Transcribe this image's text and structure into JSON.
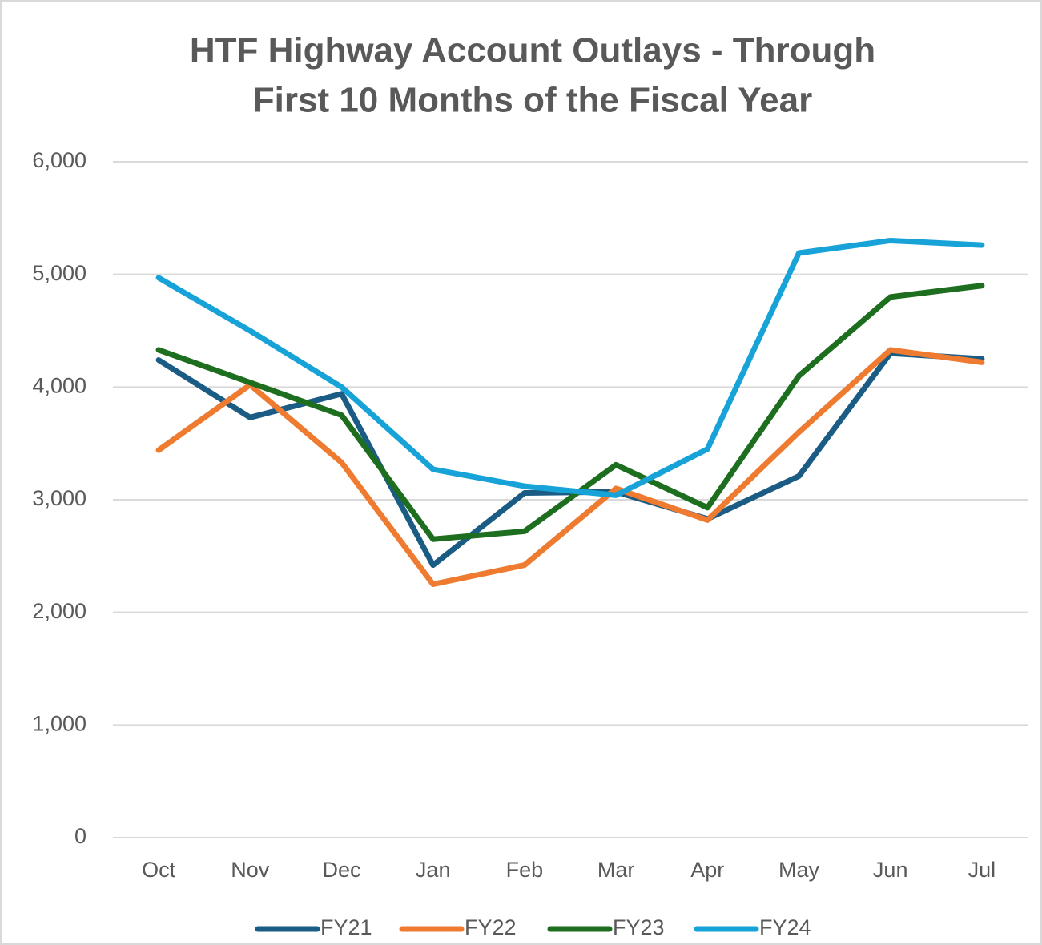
{
  "chart_data": {
    "type": "line",
    "title": [
      "HTF Highway Account Outlays - Through",
      "First 10 Months of the Fiscal Year"
    ],
    "categories": [
      "Oct",
      "Nov",
      "Dec",
      "Jan",
      "Feb",
      "Mar",
      "Apr",
      "May",
      "Jun",
      "Jul"
    ],
    "series": [
      {
        "name": "FY21",
        "color": "#1b5c85",
        "values": [
          4240,
          3730,
          3940,
          2420,
          3060,
          3070,
          2830,
          3210,
          4300,
          4250
        ]
      },
      {
        "name": "FY22",
        "color": "#ee7b30",
        "values": [
          3440,
          4020,
          3330,
          2250,
          2420,
          3100,
          2820,
          3600,
          4330,
          4220
        ]
      },
      {
        "name": "FY23",
        "color": "#1d6e1f",
        "values": [
          4330,
          4040,
          3750,
          2650,
          2720,
          3310,
          2930,
          4100,
          4800,
          4900
        ]
      },
      {
        "name": "FY24",
        "color": "#18a3d8",
        "values": [
          4970,
          4500,
          4000,
          3270,
          3120,
          3040,
          3450,
          5190,
          5300,
          5260
        ]
      }
    ],
    "ylim": [
      0,
      6000
    ],
    "yticks": [
      0,
      {
        "value": 1000,
        "label": "1,000"
      },
      {
        "value": 2000,
        "label": "2,000"
      },
      {
        "value": 3000,
        "label": "3,000"
      },
      {
        "value": 4000,
        "label": "4,000"
      },
      {
        "value": 5000,
        "label": "5,000"
      },
      {
        "value": 6000,
        "label": "6,000"
      }
    ],
    "grid": true,
    "legend": "bottom"
  }
}
